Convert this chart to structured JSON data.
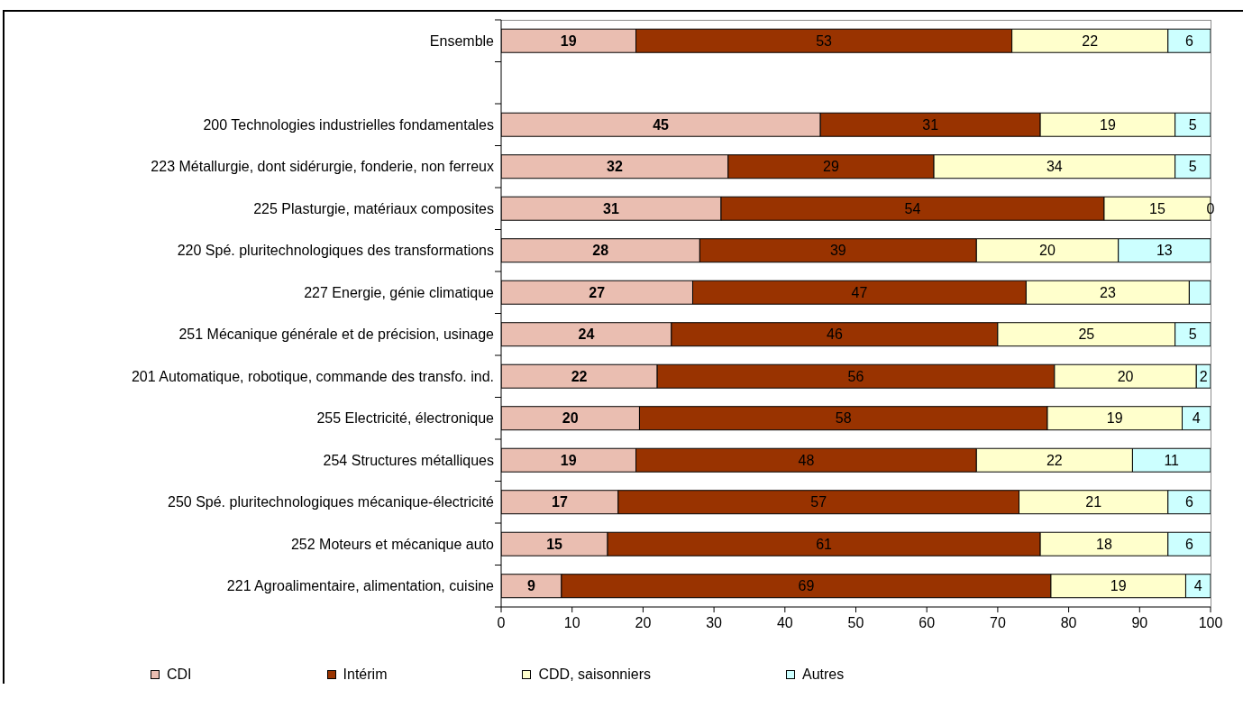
{
  "chart_data": {
    "type": "bar",
    "orientation": "horizontal",
    "stacked": true,
    "categories": [
      "Ensemble",
      null,
      "200 Technologies industrielles fondamentales",
      "223 Métallurgie, dont sidérurgie, fonderie, non ferreux",
      "225 Plasturgie, matériaux composites",
      "220 Spé. pluritechnologiques des transformations",
      "227 Energie, génie climatique",
      "251 Mécanique générale et de précision, usinage",
      "201 Automatique, robotique, commande des transfo. ind.",
      "255 Electricité, électronique",
      "254 Structures métalliques",
      "250 Spé. pluritechnologiques mécanique-électricité",
      "252 Moteurs et mécanique auto",
      "221 Agroalimentaire, alimentation, cuisine"
    ],
    "series": [
      {
        "name": "CDI",
        "color": "#eabeb1",
        "values": [
          19,
          null,
          45,
          32,
          31,
          28,
          27,
          24,
          22,
          19.5,
          19,
          16.5,
          15,
          8.5
        ],
        "value_labels": [
          "19",
          null,
          "45",
          "32",
          "31",
          "28",
          "27",
          "24",
          "22",
          "20",
          "19",
          "17",
          "15",
          "9"
        ]
      },
      {
        "name": "Intérim",
        "color": "#993300",
        "values": [
          53,
          null,
          31,
          29,
          54,
          39,
          47,
          46,
          56,
          57.5,
          48,
          56.5,
          61,
          69
        ],
        "value_labels": [
          "53",
          null,
          "31",
          "29",
          "54",
          "39",
          "47",
          "46",
          "56",
          "58",
          "48",
          "57",
          "61",
          "69"
        ]
      },
      {
        "name": "CDD, saisonniers",
        "color": "#ffffcc",
        "values": [
          22,
          null,
          19,
          34,
          15,
          20,
          23,
          25,
          20,
          19,
          22,
          21,
          18,
          19
        ],
        "value_labels": [
          "22",
          null,
          "19",
          "34",
          "15",
          "20",
          "23",
          "25",
          "20",
          "19",
          "22",
          "21",
          "18",
          "19"
        ]
      },
      {
        "name": "Autres",
        "color": "#ccffff",
        "values": [
          6,
          null,
          5,
          5,
          0,
          13,
          3,
          5,
          2,
          4,
          11,
          6,
          6,
          3.5
        ],
        "value_labels": [
          "6",
          null,
          "5",
          "5",
          "0",
          "13",
          null,
          "5",
          "2",
          "4",
          "11",
          "6",
          "6",
          "4"
        ]
      }
    ],
    "xlim": [
      0,
      100
    ],
    "xticks": [
      0,
      10,
      20,
      30,
      40,
      50,
      60,
      70,
      80,
      90,
      100
    ],
    "legend": "bottom"
  }
}
